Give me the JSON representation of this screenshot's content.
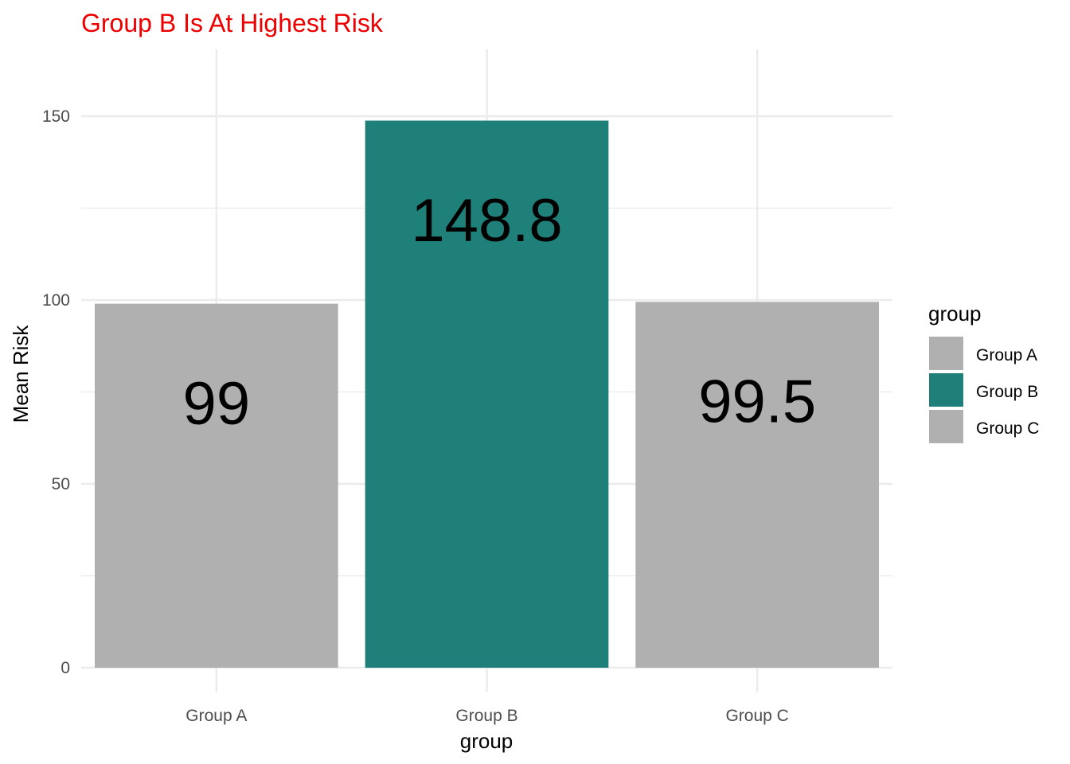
{
  "chart_data": {
    "type": "bar",
    "title": "Group B Is At Highest Risk",
    "xlabel": "group",
    "ylabel": "Mean Risk",
    "categories": [
      "Group A",
      "Group B",
      "Group C"
    ],
    "values": [
      99,
      148.8,
      99.5
    ],
    "value_labels": [
      "99",
      "148.8",
      "99.5"
    ],
    "ylim": [
      0,
      168
    ],
    "yticks": [
      0,
      50,
      100,
      150
    ],
    "ytick_labels": [
      "0",
      "50",
      "100",
      "150"
    ],
    "colors": [
      "#b0b0b0",
      "#1f7f79",
      "#b0b0b0"
    ],
    "title_color": "#ee0000",
    "grid": true,
    "legend": {
      "title": "group",
      "position": "right",
      "entries": [
        "Group A",
        "Group B",
        "Group C"
      ]
    }
  }
}
